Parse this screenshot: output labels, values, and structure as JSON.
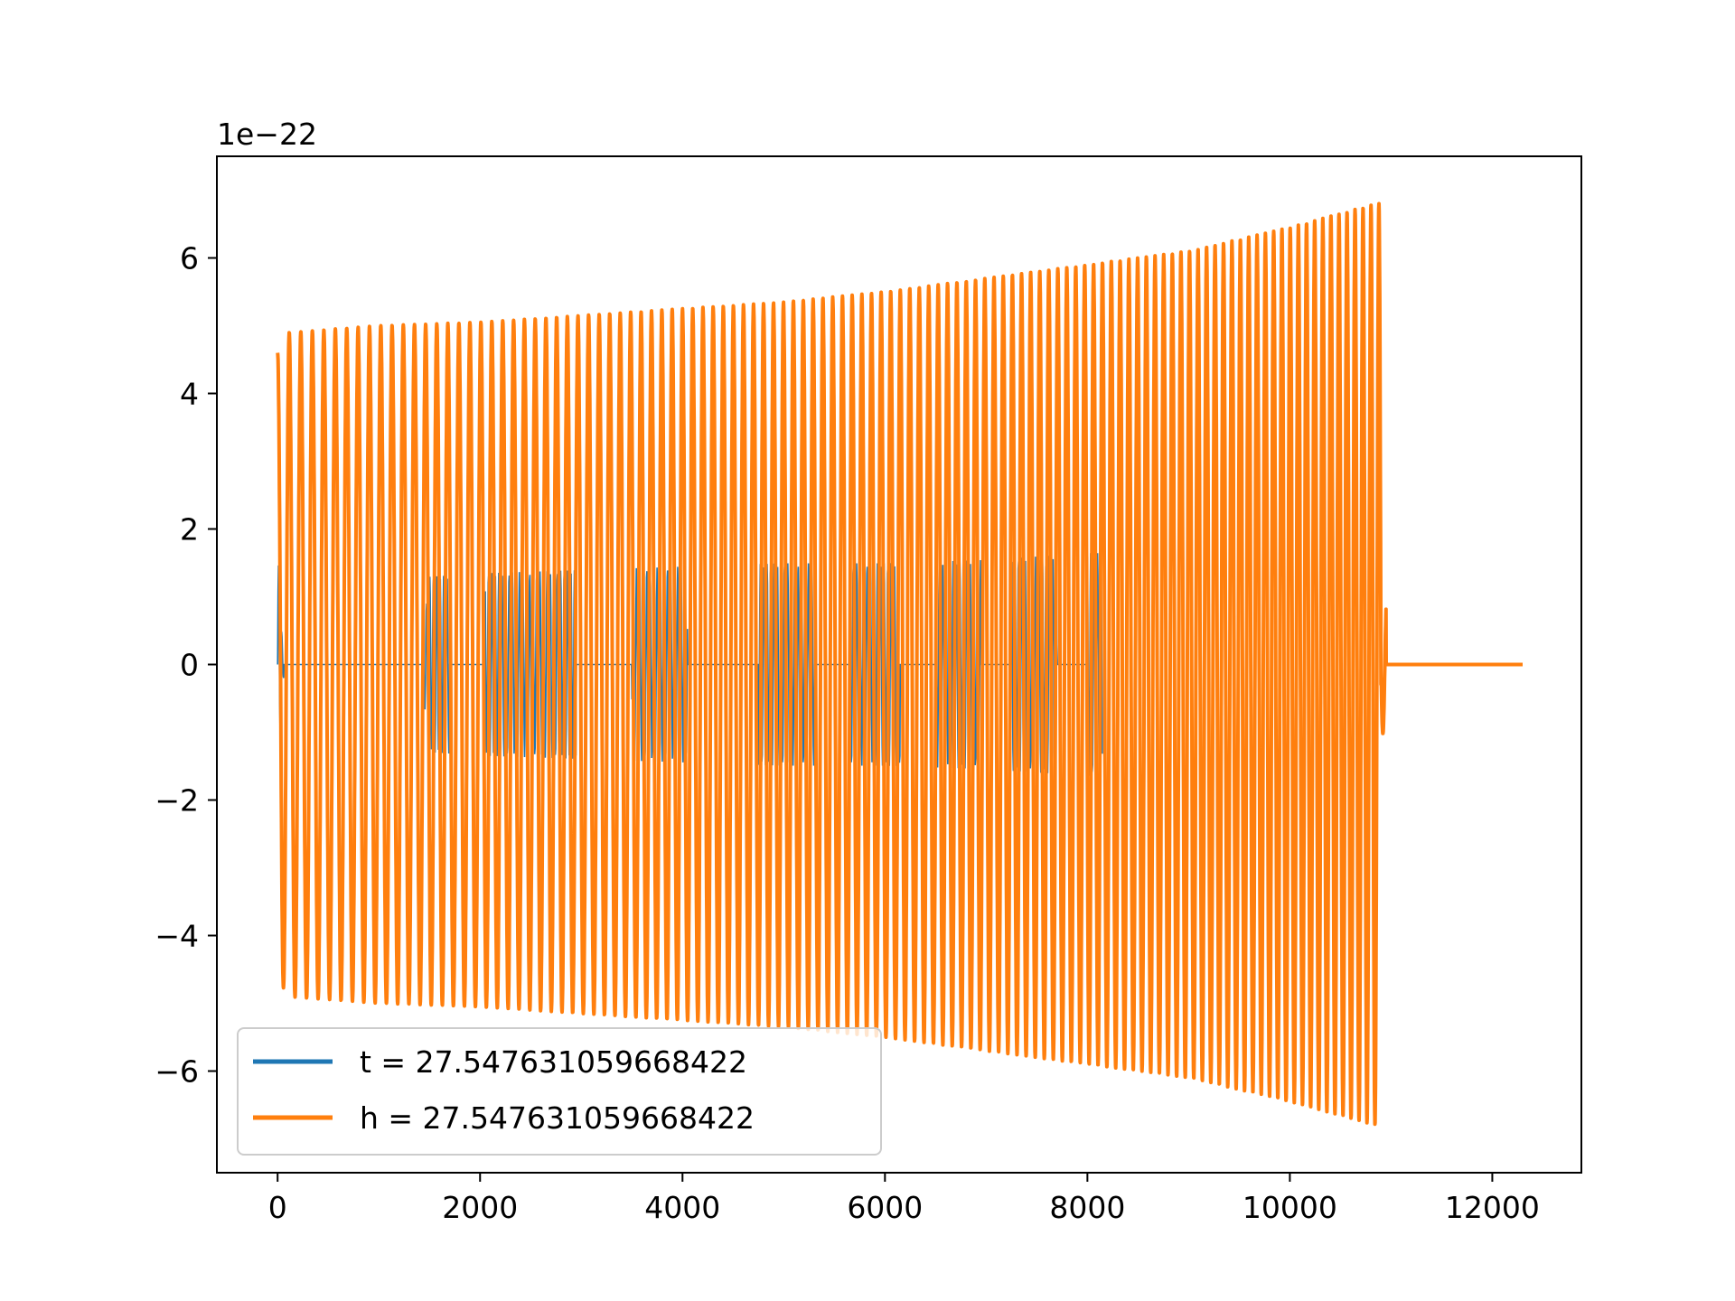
{
  "chart_data": {
    "type": "line",
    "title": "",
    "xlabel": "",
    "ylabel": "",
    "y_offset_label": "1e−22",
    "xlim": [
      -600,
      12880
    ],
    "ylim": [
      -7.5,
      7.5
    ],
    "xticks": [
      0,
      2000,
      4000,
      6000,
      8000,
      10000,
      12000
    ],
    "xtick_labels": [
      "0",
      "2000",
      "4000",
      "6000",
      "8000",
      "10000",
      "12000"
    ],
    "yticks": [
      -6,
      -4,
      -2,
      0,
      2,
      4,
      6
    ],
    "ytick_labels": [
      "−6",
      "−4",
      "−2",
      "0",
      "2",
      "4",
      "6"
    ],
    "grid": false,
    "legend_position": "lower-left",
    "series": [
      {
        "name": "t = 27.547631059668422",
        "color": "#1f77b4",
        "description_points": [
          {
            "x": 0,
            "y": 1.7
          },
          {
            "x": 50,
            "y": 0.25
          },
          {
            "x": 100,
            "y": 0
          },
          {
            "x": 1400,
            "y": 0
          },
          {
            "x": 1500,
            "y": 1.3
          },
          {
            "x": 2000,
            "y": 1.35
          },
          {
            "x": 3000,
            "y": 1.4
          },
          {
            "x": 4000,
            "y": 1.45
          },
          {
            "x": 5000,
            "y": 1.5
          },
          {
            "x": 6000,
            "y": 1.5
          },
          {
            "x": 7000,
            "y": 1.55
          },
          {
            "x": 8000,
            "y": 1.65
          },
          {
            "x": 8150,
            "y": 1.65
          }
        ]
      },
      {
        "name": "h = 27.547631059668422",
        "color": "#ff7f0e",
        "description_points": [
          {
            "x": 0,
            "y": 4.6
          },
          {
            "x": 100,
            "y": 4.9
          },
          {
            "x": 1000,
            "y": 5.0
          },
          {
            "x": 2000,
            "y": 5.05
          },
          {
            "x": 3000,
            "y": 5.15
          },
          {
            "x": 4000,
            "y": 5.25
          },
          {
            "x": 5000,
            "y": 5.35
          },
          {
            "x": 6000,
            "y": 5.5
          },
          {
            "x": 7000,
            "y": 5.7
          },
          {
            "x": 8000,
            "y": 5.9
          },
          {
            "x": 9000,
            "y": 6.1
          },
          {
            "x": 10000,
            "y": 6.45
          },
          {
            "x": 10850,
            "y": 6.8
          },
          {
            "x": 10950,
            "y": 0.8
          },
          {
            "x": 11000,
            "y": 0
          },
          {
            "x": 12300,
            "y": 0
          }
        ]
      }
    ]
  }
}
